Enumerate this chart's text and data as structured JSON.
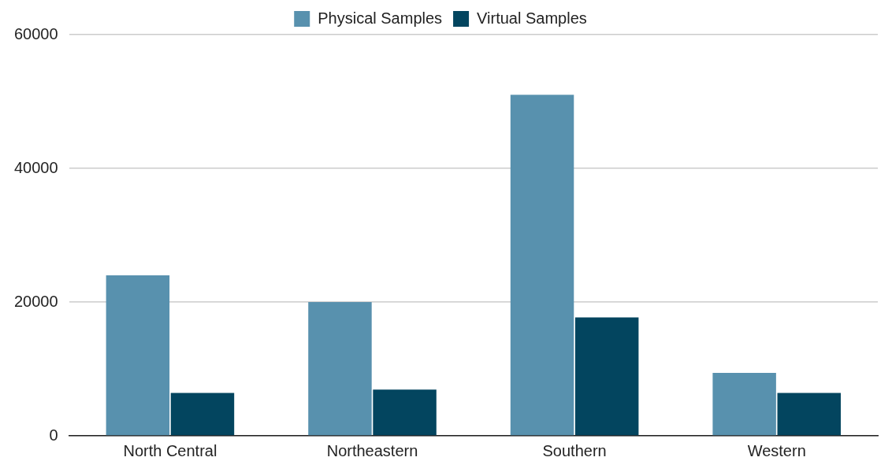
{
  "chart_data": {
    "type": "bar",
    "categories": [
      "North Central",
      "Northeastern",
      "Southern",
      "Western"
    ],
    "series": [
      {
        "name": "Physical Samples",
        "color": "#5891ae",
        "values": [
          24000,
          20000,
          51000,
          9400
        ]
      },
      {
        "name": "Virtual Samples",
        "color": "#03455f",
        "values": [
          6400,
          6900,
          17700,
          6400
        ]
      }
    ],
    "ylim": [
      0,
      60000
    ],
    "yticks": [
      0,
      20000,
      40000,
      60000
    ],
    "grid": "y",
    "legend": "top"
  }
}
